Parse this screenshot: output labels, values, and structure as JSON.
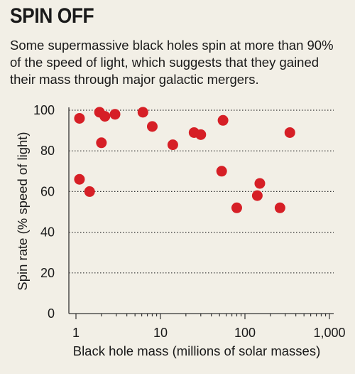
{
  "header": {
    "title": "SPIN OFF",
    "subtitle": "Some supermassive black holes spin at more than 90% of the speed of light, which suggests that they gained their mass through major galactic mergers."
  },
  "colors": {
    "background": "#f2efe6",
    "point": "#d61f26",
    "grid": "#333333",
    "text": "#1a1a1a"
  },
  "chart_data": {
    "type": "scatter",
    "xlabel": "Black hole mass (millions of solar masses)",
    "ylabel": "Spin rate (% speed of light)",
    "xscale": "log",
    "xlim": [
      0.7,
      1300
    ],
    "ylim": [
      0,
      100
    ],
    "x_ticks": [
      1,
      10,
      100,
      1000
    ],
    "x_tick_labels": [
      "1",
      "10",
      "100",
      "1,000"
    ],
    "y_ticks": [
      0,
      20,
      40,
      60,
      80,
      100
    ],
    "y_tick_labels": [
      "0",
      "20",
      "40",
      "60",
      "80",
      "100"
    ],
    "grid": "horizontal dotted",
    "points": [
      {
        "x": 1.1,
        "y": 96
      },
      {
        "x": 1.1,
        "y": 66
      },
      {
        "x": 1.45,
        "y": 60
      },
      {
        "x": 1.9,
        "y": 99
      },
      {
        "x": 2.0,
        "y": 84
      },
      {
        "x": 2.2,
        "y": 97
      },
      {
        "x": 2.9,
        "y": 98
      },
      {
        "x": 6.2,
        "y": 99
      },
      {
        "x": 8.0,
        "y": 92
      },
      {
        "x": 14,
        "y": 83
      },
      {
        "x": 25,
        "y": 89
      },
      {
        "x": 30,
        "y": 88
      },
      {
        "x": 55,
        "y": 95
      },
      {
        "x": 53,
        "y": 70
      },
      {
        "x": 80,
        "y": 52
      },
      {
        "x": 140,
        "y": 58
      },
      {
        "x": 150,
        "y": 64
      },
      {
        "x": 260,
        "y": 52
      },
      {
        "x": 340,
        "y": 89
      }
    ]
  }
}
